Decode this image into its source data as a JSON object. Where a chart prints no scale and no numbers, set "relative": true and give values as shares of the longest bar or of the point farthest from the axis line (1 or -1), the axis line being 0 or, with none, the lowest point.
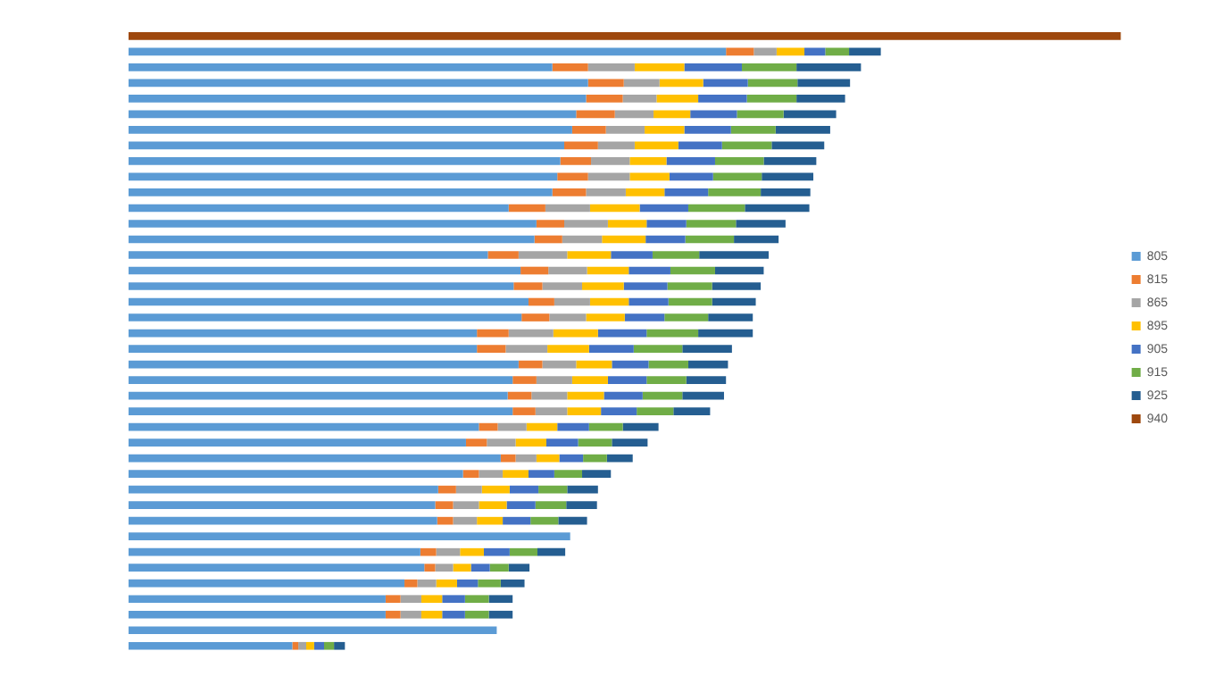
{
  "chart_data": {
    "type": "bar",
    "orientation": "horizontal",
    "stacked": true,
    "relative": true,
    "legend": "right",
    "categories": [
      null,
      null,
      null,
      null,
      null,
      null,
      null,
      null,
      null,
      null,
      null,
      null,
      null,
      null,
      null,
      null,
      null,
      null,
      null,
      null,
      null,
      null,
      null,
      null,
      null,
      null,
      null,
      null,
      null,
      null,
      null,
      null,
      null,
      null,
      null,
      null,
      null,
      null,
      null,
      null
    ],
    "series": [
      {
        "name": "805",
        "color": "#5b9bd5",
        "values": [
          null,
          0.602,
          0.427,
          0.463,
          0.461,
          0.451,
          0.447,
          0.439,
          0.435,
          0.432,
          0.427,
          0.383,
          0.411,
          0.409,
          0.362,
          0.395,
          0.388,
          0.403,
          0.396,
          0.351,
          0.351,
          0.393,
          0.387,
          0.382,
          0.387,
          0.353,
          0.34,
          0.375,
          0.337,
          0.312,
          0.309,
          0.311,
          0.445,
          0.294,
          0.298,
          0.278,
          0.259,
          0.259,
          0.371,
          0.165
        ]
      },
      {
        "name": "815",
        "color": "#ed7d31",
        "values": [
          null,
          0.028,
          0.036,
          0.036,
          0.037,
          0.039,
          0.034,
          0.034,
          0.031,
          0.031,
          0.034,
          0.037,
          0.028,
          0.028,
          0.031,
          0.028,
          0.029,
          0.026,
          0.028,
          0.032,
          0.029,
          0.024,
          0.024,
          0.024,
          0.023,
          0.019,
          0.021,
          0.015,
          0.016,
          0.018,
          0.018,
          0.016,
          null,
          0.016,
          0.011,
          0.013,
          0.015,
          0.015,
          null,
          0.006
        ]
      },
      {
        "name": "865",
        "color": "#a5a5a5",
        "values": [
          null,
          0.023,
          0.047,
          0.036,
          0.034,
          0.039,
          0.039,
          0.037,
          0.039,
          0.042,
          0.04,
          0.045,
          0.044,
          0.04,
          0.049,
          0.039,
          0.04,
          0.036,
          0.037,
          0.045,
          0.042,
          0.034,
          0.036,
          0.036,
          0.032,
          0.029,
          0.029,
          0.021,
          0.024,
          0.026,
          0.026,
          0.024,
          null,
          0.024,
          0.018,
          0.019,
          0.021,
          0.021,
          null,
          0.008
        ]
      },
      {
        "name": "895",
        "color": "#ffc000",
        "values": [
          null,
          0.028,
          0.05,
          0.044,
          0.042,
          0.037,
          0.04,
          0.044,
          0.037,
          0.04,
          0.039,
          0.05,
          0.039,
          0.044,
          0.044,
          0.042,
          0.042,
          0.039,
          0.039,
          0.045,
          0.042,
          0.036,
          0.036,
          0.037,
          0.034,
          0.031,
          0.031,
          0.023,
          0.026,
          0.028,
          0.028,
          0.026,
          null,
          0.024,
          0.018,
          0.021,
          0.021,
          0.021,
          null,
          0.008
        ]
      },
      {
        "name": "905",
        "color": "#4472c4",
        "values": [
          null,
          0.021,
          0.058,
          0.045,
          0.049,
          0.047,
          0.047,
          0.044,
          0.049,
          0.044,
          0.044,
          0.049,
          0.04,
          0.04,
          0.042,
          0.042,
          0.044,
          0.04,
          0.04,
          0.049,
          0.045,
          0.037,
          0.039,
          0.039,
          0.036,
          0.032,
          0.032,
          0.024,
          0.026,
          0.029,
          0.029,
          0.028,
          null,
          0.026,
          0.019,
          0.021,
          0.023,
          0.023,
          null,
          0.01
        ]
      },
      {
        "name": "915",
        "color": "#70ad47",
        "values": [
          null,
          0.024,
          0.055,
          0.05,
          0.05,
          0.047,
          0.045,
          0.05,
          0.049,
          0.049,
          0.053,
          0.057,
          0.05,
          0.049,
          0.047,
          0.045,
          0.045,
          0.044,
          0.044,
          0.052,
          0.049,
          0.04,
          0.04,
          0.04,
          0.037,
          0.034,
          0.034,
          0.024,
          0.028,
          0.029,
          0.031,
          0.028,
          null,
          0.028,
          0.019,
          0.023,
          0.024,
          0.024,
          null,
          0.01
        ]
      },
      {
        "name": "925",
        "color": "#255e91",
        "values": [
          null,
          0.032,
          0.065,
          0.053,
          0.049,
          0.053,
          0.055,
          0.053,
          0.053,
          0.052,
          0.05,
          0.065,
          0.05,
          0.045,
          0.07,
          0.049,
          0.049,
          0.044,
          0.045,
          0.055,
          0.05,
          0.04,
          0.04,
          0.042,
          0.037,
          0.036,
          0.036,
          0.026,
          0.029,
          0.031,
          0.031,
          0.029,
          null,
          0.028,
          0.021,
          0.024,
          0.024,
          0.024,
          null,
          0.011
        ]
      },
      {
        "name": "940",
        "color": "#9e480e",
        "values": [
          1,
          null,
          null,
          null,
          null,
          null,
          null,
          null,
          null,
          null,
          null,
          null,
          null,
          null,
          null,
          null,
          null,
          null,
          null,
          null,
          null,
          null,
          null,
          null,
          null,
          null,
          null,
          null,
          null,
          null,
          null,
          null,
          null,
          null,
          null,
          null,
          null,
          null,
          null,
          null
        ]
      }
    ]
  }
}
